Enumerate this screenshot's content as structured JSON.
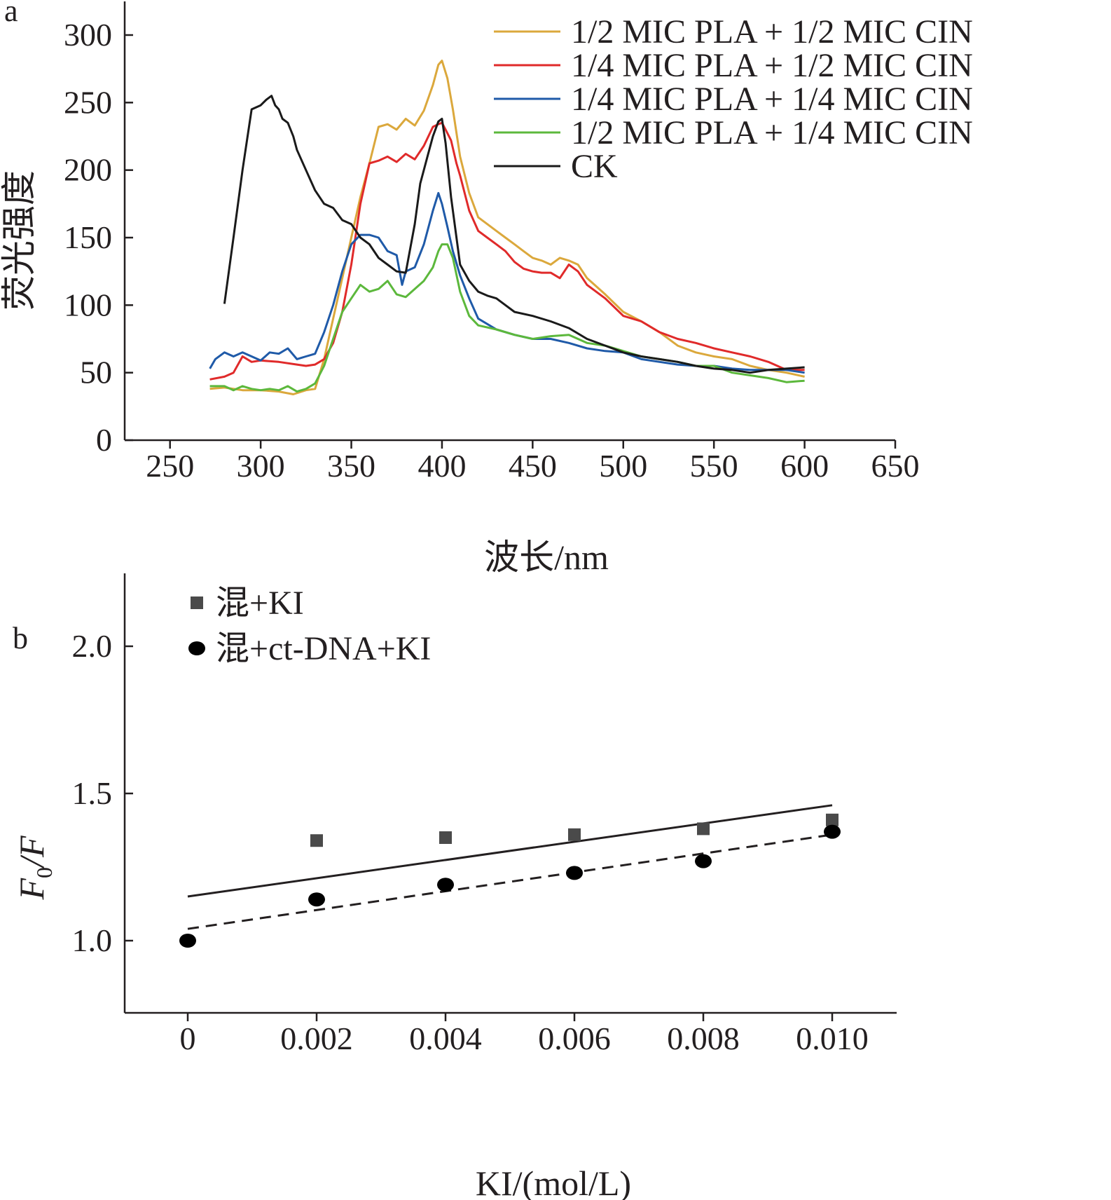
{
  "panel_labels": {
    "a": "a",
    "b": "b"
  },
  "colors": {
    "ink": "#231f20",
    "series_yellow": "#dba83c",
    "series_red": "#e02a2a",
    "series_blue": "#1f5aa8",
    "series_green": "#5cb83c",
    "series_black": "#1a1a1a",
    "square_marker": "#4a4a4a"
  },
  "chart_data": [
    {
      "type": "line",
      "xlabel": "波长/nm",
      "ylabel": "荧光强度",
      "xlim": [
        225,
        650
      ],
      "ylim": [
        0,
        320
      ],
      "xticks": [
        "250",
        "300",
        "350",
        "400",
        "450",
        "500",
        "550",
        "600",
        "650"
      ],
      "yticks": [
        "0",
        "50",
        "100",
        "150",
        "200",
        "250",
        "300"
      ],
      "legend_placement": "top-right",
      "series": [
        {
          "name": "1/2 MIC PLA + 1/2 MIC CIN",
          "color": "#dba83c",
          "x": [
            272,
            280,
            290,
            300,
            310,
            318,
            325,
            330,
            335,
            340,
            345,
            350,
            355,
            360,
            365,
            370,
            375,
            380,
            385,
            390,
            395,
            398,
            400,
            403,
            406,
            410,
            415,
            420,
            425,
            430,
            435,
            440,
            445,
            450,
            455,
            460,
            465,
            470,
            475,
            480,
            490,
            500,
            510,
            520,
            530,
            540,
            550,
            560,
            570,
            580,
            590,
            600
          ],
          "y": [
            38,
            39,
            37,
            37,
            36,
            34,
            37,
            38,
            60,
            90,
            120,
            150,
            180,
            205,
            232,
            234,
            230,
            238,
            233,
            244,
            263,
            278,
            281,
            268,
            245,
            210,
            183,
            165,
            160,
            155,
            150,
            145,
            140,
            135,
            133,
            130,
            135,
            133,
            130,
            120,
            108,
            95,
            88,
            80,
            70,
            65,
            62,
            60,
            55,
            52,
            50,
            47
          ]
        },
        {
          "name": "1/4 MIC PLA + 1/2 MIC CIN",
          "color": "#e02a2a",
          "x": [
            272,
            280,
            285,
            290,
            295,
            300,
            310,
            320,
            325,
            330,
            335,
            340,
            345,
            350,
            355,
            360,
            365,
            370,
            375,
            380,
            385,
            390,
            395,
            398,
            400,
            402,
            405,
            408,
            410,
            415,
            420,
            425,
            430,
            435,
            440,
            445,
            450,
            455,
            460,
            465,
            470,
            475,
            480,
            490,
            500,
            510,
            520,
            530,
            540,
            550,
            560,
            570,
            580,
            590,
            600
          ],
          "y": [
            45,
            47,
            50,
            62,
            58,
            59,
            58,
            56,
            55,
            56,
            60,
            72,
            95,
            130,
            175,
            205,
            207,
            210,
            206,
            212,
            208,
            218,
            232,
            234,
            235,
            230,
            222,
            205,
            196,
            170,
            155,
            150,
            145,
            140,
            132,
            127,
            125,
            124,
            124,
            120,
            130,
            125,
            115,
            105,
            92,
            88,
            80,
            75,
            72,
            68,
            65,
            62,
            58,
            52,
            52
          ]
        },
        {
          "name": "1/4 MIC PLA + 1/4 MIC CIN",
          "color": "#1f5aa8",
          "x": [
            272,
            275,
            280,
            285,
            290,
            295,
            300,
            305,
            310,
            315,
            320,
            325,
            330,
            335,
            340,
            345,
            350,
            355,
            360,
            365,
            370,
            375,
            378,
            380,
            385,
            390,
            395,
            398,
            400,
            403,
            406,
            410,
            415,
            420,
            430,
            440,
            450,
            460,
            470,
            480,
            490,
            500,
            510,
            520,
            530,
            540,
            550,
            560,
            570,
            580,
            590,
            600
          ],
          "y": [
            53,
            60,
            65,
            62,
            65,
            62,
            59,
            65,
            64,
            68,
            60,
            62,
            64,
            80,
            100,
            125,
            145,
            152,
            152,
            150,
            140,
            137,
            115,
            125,
            128,
            145,
            170,
            183,
            175,
            158,
            140,
            122,
            105,
            90,
            82,
            78,
            75,
            75,
            72,
            68,
            66,
            65,
            60,
            58,
            56,
            55,
            55,
            53,
            52,
            52,
            52,
            50
          ]
        },
        {
          "name": "1/2 MIC PLA + 1/4 MIC CIN",
          "color": "#5cb83c",
          "x": [
            272,
            280,
            285,
            290,
            295,
            300,
            305,
            310,
            315,
            320,
            325,
            330,
            335,
            340,
            345,
            350,
            355,
            360,
            365,
            370,
            375,
            380,
            385,
            390,
            395,
            398,
            400,
            403,
            406,
            410,
            415,
            420,
            430,
            440,
            450,
            460,
            470,
            480,
            490,
            500,
            510,
            520,
            530,
            540,
            550,
            560,
            570,
            580,
            590,
            600
          ],
          "y": [
            40,
            40,
            37,
            40,
            38,
            37,
            38,
            37,
            40,
            36,
            38,
            42,
            55,
            75,
            95,
            105,
            115,
            110,
            112,
            118,
            108,
            106,
            112,
            118,
            128,
            140,
            145,
            145,
            135,
            110,
            92,
            85,
            82,
            78,
            75,
            77,
            78,
            72,
            70,
            66,
            62,
            60,
            58,
            55,
            55,
            50,
            48,
            46,
            43,
            44
          ]
        },
        {
          "name": "CK",
          "color": "#1a1a1a",
          "x": [
            280,
            285,
            290,
            295,
            300,
            303,
            306,
            308,
            310,
            312,
            315,
            318,
            320,
            325,
            330,
            335,
            340,
            345,
            350,
            355,
            360,
            365,
            370,
            375,
            380,
            385,
            388,
            392,
            395,
            398,
            400,
            402,
            405,
            410,
            415,
            420,
            425,
            430,
            435,
            440,
            450,
            460,
            470,
            480,
            490,
            500,
            510,
            520,
            530,
            540,
            550,
            560,
            570,
            580,
            590,
            600
          ],
          "y": [
            101,
            150,
            200,
            245,
            248,
            252,
            255,
            248,
            245,
            238,
            235,
            225,
            215,
            200,
            185,
            175,
            172,
            163,
            160,
            150,
            145,
            135,
            130,
            125,
            124,
            160,
            190,
            210,
            225,
            236,
            238,
            220,
            180,
            130,
            118,
            110,
            107,
            105,
            100,
            95,
            92,
            88,
            83,
            75,
            70,
            65,
            62,
            60,
            58,
            55,
            53,
            52,
            50,
            52,
            53,
            54
          ]
        }
      ]
    },
    {
      "type": "scatter",
      "xlabel": "KI/(mol/L)",
      "ylabel_main": "F",
      "ylabel_sub": "0",
      "ylabel_tail": "/F",
      "xlim": [
        -0.001,
        0.011
      ],
      "ylim": [
        0.75,
        2.25
      ],
      "xticks": [
        "0",
        "0.002",
        "0.004",
        "0.006",
        "0.008",
        "0.010"
      ],
      "yticks": [
        "1.0",
        "1.5",
        "2.0"
      ],
      "legend_placement": "top-left",
      "series": [
        {
          "name": "混+KI",
          "marker": "square",
          "x": [
            0.002,
            0.004,
            0.006,
            0.008,
            0.01
          ],
          "y": [
            1.34,
            1.35,
            1.36,
            1.38,
            1.41
          ],
          "fit": {
            "x": [
              0,
              0.01
            ],
            "y": [
              1.15,
              1.46
            ],
            "style": "solid"
          }
        },
        {
          "name": "混+ct-DNA+KI",
          "marker": "circle",
          "x": [
            0,
            0.002,
            0.004,
            0.006,
            0.008,
            0.01
          ],
          "y": [
            1.0,
            1.14,
            1.19,
            1.23,
            1.27,
            1.37
          ],
          "fit": {
            "x": [
              0,
              0.01
            ],
            "y": [
              1.04,
              1.36
            ],
            "style": "dashed"
          }
        }
      ]
    }
  ]
}
